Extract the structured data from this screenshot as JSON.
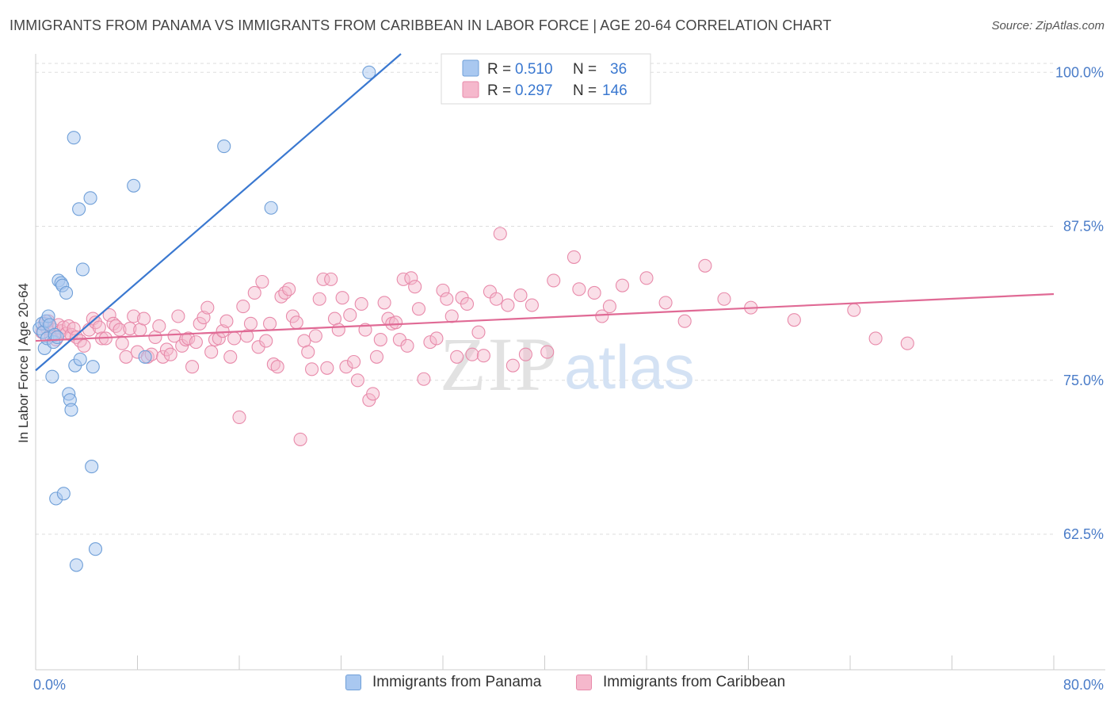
{
  "title": "IMMIGRANTS FROM PANAMA VS IMMIGRANTS FROM CARIBBEAN IN LABOR FORCE | AGE 20-64 CORRELATION CHART",
  "source": "Source: ZipAtlas.com",
  "watermark": {
    "zip": "ZIP",
    "atlas": "atlas"
  },
  "colors": {
    "blue_fill": "#a9c8f0",
    "blue_stroke": "#6f9fd8",
    "blue_line": "#3a78d0",
    "pink_fill": "#f5b8cc",
    "pink_stroke": "#e88aaa",
    "pink_line": "#e06a95",
    "tick_label": "#4a7cc8",
    "grid": "#dddddd",
    "axis": "#cccccc"
  },
  "legend_top": {
    "rows": [
      {
        "r_label": "R =",
        "r_value": "0.510",
        "n_label": "N =",
        "n_value": "36"
      },
      {
        "r_label": "R =",
        "r_value": "0.297",
        "n_label": "N =",
        "n_value": "146"
      }
    ]
  },
  "legend_bottom": [
    {
      "label": "Immigrants from Panama"
    },
    {
      "label": "Immigrants from Caribbean"
    }
  ],
  "chart_data": {
    "type": "scatter",
    "title": "IMMIGRANTS FROM PANAMA VS IMMIGRANTS FROM CARIBBEAN IN LABOR FORCE | AGE 20-64 CORRELATION CHART",
    "xlabel": "",
    "ylabel": "In Labor Force | Age 20-64",
    "xlim": [
      0,
      80
    ],
    "ylim": [
      51.5,
      101.5
    ],
    "x_tick_labels": [
      {
        "value": 0,
        "label": "0.0%"
      },
      {
        "value": 80,
        "label": "80.0%"
      }
    ],
    "y_ticks": [
      {
        "value": 100,
        "label": "100.0%"
      },
      {
        "value": 87.5,
        "label": "87.5%"
      },
      {
        "value": 75,
        "label": "75.0%"
      },
      {
        "value": 62.5,
        "label": "62.5%"
      }
    ],
    "x_minor_ticks": [
      8,
      16,
      24,
      32,
      40,
      48,
      56,
      64,
      72,
      80
    ],
    "grid": true,
    "legend_position": "top-center",
    "series": [
      {
        "name": "Immigrants from Panama",
        "color": "#a9c8f0",
        "trend": {
          "x": [
            0,
            28.7
          ],
          "y": [
            75.8,
            101.5
          ]
        },
        "points": [
          [
            0.3,
            79.2
          ],
          [
            0.5,
            79.6
          ],
          [
            0.6,
            78.9
          ],
          [
            0.7,
            77.6
          ],
          [
            0.8,
            79.8
          ],
          [
            0.9,
            78.4
          ],
          [
            1.0,
            80.2
          ],
          [
            1.1,
            79.5
          ],
          [
            1.3,
            75.3
          ],
          [
            1.4,
            78.1
          ],
          [
            1.5,
            78.7
          ],
          [
            1.6,
            65.4
          ],
          [
            1.7,
            78.5
          ],
          [
            1.8,
            83.1
          ],
          [
            2.0,
            82.9
          ],
          [
            2.1,
            82.7
          ],
          [
            2.2,
            65.8
          ],
          [
            2.4,
            82.1
          ],
          [
            2.6,
            73.9
          ],
          [
            2.7,
            73.4
          ],
          [
            2.8,
            72.6
          ],
          [
            3.0,
            94.7
          ],
          [
            3.1,
            76.2
          ],
          [
            3.2,
            60.0
          ],
          [
            3.4,
            88.9
          ],
          [
            3.5,
            76.7
          ],
          [
            3.7,
            84.0
          ],
          [
            4.3,
            89.8
          ],
          [
            4.4,
            68.0
          ],
          [
            4.5,
            76.1
          ],
          [
            4.7,
            61.3
          ],
          [
            7.7,
            90.8
          ],
          [
            8.6,
            76.9
          ],
          [
            14.8,
            94.0
          ],
          [
            18.5,
            89.0
          ],
          [
            26.2,
            100.0
          ]
        ]
      },
      {
        "name": "Immigrants from Caribbean",
        "color": "#f5b8cc",
        "trend": {
          "x": [
            0,
            80
          ],
          "y": [
            78.2,
            82.0
          ]
        },
        "points": [
          [
            0.5,
            78.9
          ],
          [
            0.7,
            79.6
          ],
          [
            0.9,
            79.2
          ],
          [
            1.0,
            79.8
          ],
          [
            1.2,
            78.6
          ],
          [
            1.4,
            79.1
          ],
          [
            1.6,
            78.3
          ],
          [
            1.8,
            79.5
          ],
          [
            2.0,
            79.0
          ],
          [
            2.2,
            79.3
          ],
          [
            2.4,
            78.8
          ],
          [
            2.6,
            79.4
          ],
          [
            2.8,
            78.7
          ],
          [
            3.0,
            79.2
          ],
          [
            3.2,
            78.5
          ],
          [
            3.5,
            78.2
          ],
          [
            3.8,
            77.8
          ],
          [
            4.2,
            79.1
          ],
          [
            4.5,
            80.0
          ],
          [
            4.7,
            79.7
          ],
          [
            5.0,
            79.3
          ],
          [
            5.2,
            78.4
          ],
          [
            5.5,
            78.4
          ],
          [
            5.8,
            80.3
          ],
          [
            6.1,
            79.6
          ],
          [
            6.3,
            79.4
          ],
          [
            6.6,
            79.1
          ],
          [
            6.8,
            78.0
          ],
          [
            7.1,
            76.9
          ],
          [
            7.4,
            79.2
          ],
          [
            7.7,
            80.2
          ],
          [
            8.0,
            77.3
          ],
          [
            8.2,
            79.1
          ],
          [
            8.5,
            80.0
          ],
          [
            8.8,
            76.9
          ],
          [
            9.1,
            77.1
          ],
          [
            9.4,
            78.5
          ],
          [
            9.7,
            79.4
          ],
          [
            10.0,
            76.9
          ],
          [
            10.3,
            77.5
          ],
          [
            10.6,
            77.1
          ],
          [
            10.9,
            78.6
          ],
          [
            11.2,
            80.2
          ],
          [
            11.5,
            77.8
          ],
          [
            11.8,
            78.3
          ],
          [
            12.0,
            78.4
          ],
          [
            12.3,
            76.1
          ],
          [
            12.6,
            78.1
          ],
          [
            12.9,
            79.6
          ],
          [
            13.2,
            80.1
          ],
          [
            13.5,
            80.9
          ],
          [
            13.8,
            77.3
          ],
          [
            14.1,
            78.3
          ],
          [
            14.4,
            78.4
          ],
          [
            14.7,
            79.0
          ],
          [
            15.0,
            79.8
          ],
          [
            15.3,
            76.9
          ],
          [
            15.6,
            78.4
          ],
          [
            16.0,
            72.0
          ],
          [
            16.3,
            81.0
          ],
          [
            16.6,
            78.6
          ],
          [
            16.9,
            79.6
          ],
          [
            17.2,
            82.1
          ],
          [
            17.5,
            77.7
          ],
          [
            17.8,
            83.0
          ],
          [
            18.1,
            78.2
          ],
          [
            18.4,
            79.6
          ],
          [
            18.7,
            76.3
          ],
          [
            19.0,
            76.1
          ],
          [
            19.3,
            81.8
          ],
          [
            19.6,
            82.1
          ],
          [
            19.9,
            82.4
          ],
          [
            20.2,
            80.2
          ],
          [
            20.5,
            79.7
          ],
          [
            20.8,
            70.2
          ],
          [
            21.1,
            78.2
          ],
          [
            21.4,
            77.3
          ],
          [
            21.7,
            75.9
          ],
          [
            22.0,
            78.6
          ],
          [
            22.3,
            81.6
          ],
          [
            22.6,
            83.2
          ],
          [
            22.9,
            76.0
          ],
          [
            23.2,
            83.2
          ],
          [
            23.5,
            80.0
          ],
          [
            23.8,
            79.1
          ],
          [
            24.1,
            81.7
          ],
          [
            24.4,
            76.1
          ],
          [
            24.7,
            80.3
          ],
          [
            25.0,
            76.5
          ],
          [
            25.3,
            75.0
          ],
          [
            25.6,
            81.2
          ],
          [
            25.9,
            79.1
          ],
          [
            26.2,
            73.4
          ],
          [
            26.5,
            73.9
          ],
          [
            26.8,
            76.9
          ],
          [
            27.1,
            78.3
          ],
          [
            27.4,
            81.3
          ],
          [
            27.7,
            80.0
          ],
          [
            28.0,
            79.6
          ],
          [
            28.3,
            79.7
          ],
          [
            28.6,
            78.3
          ],
          [
            28.9,
            83.2
          ],
          [
            29.2,
            77.8
          ],
          [
            29.5,
            83.3
          ],
          [
            29.8,
            82.6
          ],
          [
            30.1,
            80.8
          ],
          [
            30.5,
            75.1
          ],
          [
            31.0,
            78.1
          ],
          [
            31.5,
            78.4
          ],
          [
            32.0,
            82.3
          ],
          [
            32.3,
            81.6
          ],
          [
            32.7,
            80.2
          ],
          [
            33.1,
            76.9
          ],
          [
            33.5,
            81.7
          ],
          [
            33.9,
            81.2
          ],
          [
            34.3,
            77.1
          ],
          [
            34.8,
            78.9
          ],
          [
            35.2,
            77.0
          ],
          [
            35.7,
            82.2
          ],
          [
            36.2,
            81.6
          ],
          [
            36.5,
            86.9
          ],
          [
            37.1,
            81.1
          ],
          [
            37.5,
            76.2
          ],
          [
            38.1,
            81.9
          ],
          [
            38.5,
            77.1
          ],
          [
            39.0,
            81.1
          ],
          [
            40.2,
            77.3
          ],
          [
            40.7,
            83.1
          ],
          [
            42.3,
            85.0
          ],
          [
            42.7,
            82.4
          ],
          [
            43.9,
            82.1
          ],
          [
            44.5,
            80.2
          ],
          [
            45.1,
            81.0
          ],
          [
            46.1,
            82.7
          ],
          [
            48.0,
            83.3
          ],
          [
            49.5,
            81.3
          ],
          [
            51.0,
            79.8
          ],
          [
            52.6,
            84.3
          ],
          [
            54.1,
            81.6
          ],
          [
            56.2,
            80.9
          ],
          [
            59.6,
            79.9
          ],
          [
            64.3,
            80.7
          ],
          [
            66.0,
            78.4
          ],
          [
            68.5,
            78.0
          ]
        ]
      }
    ]
  }
}
